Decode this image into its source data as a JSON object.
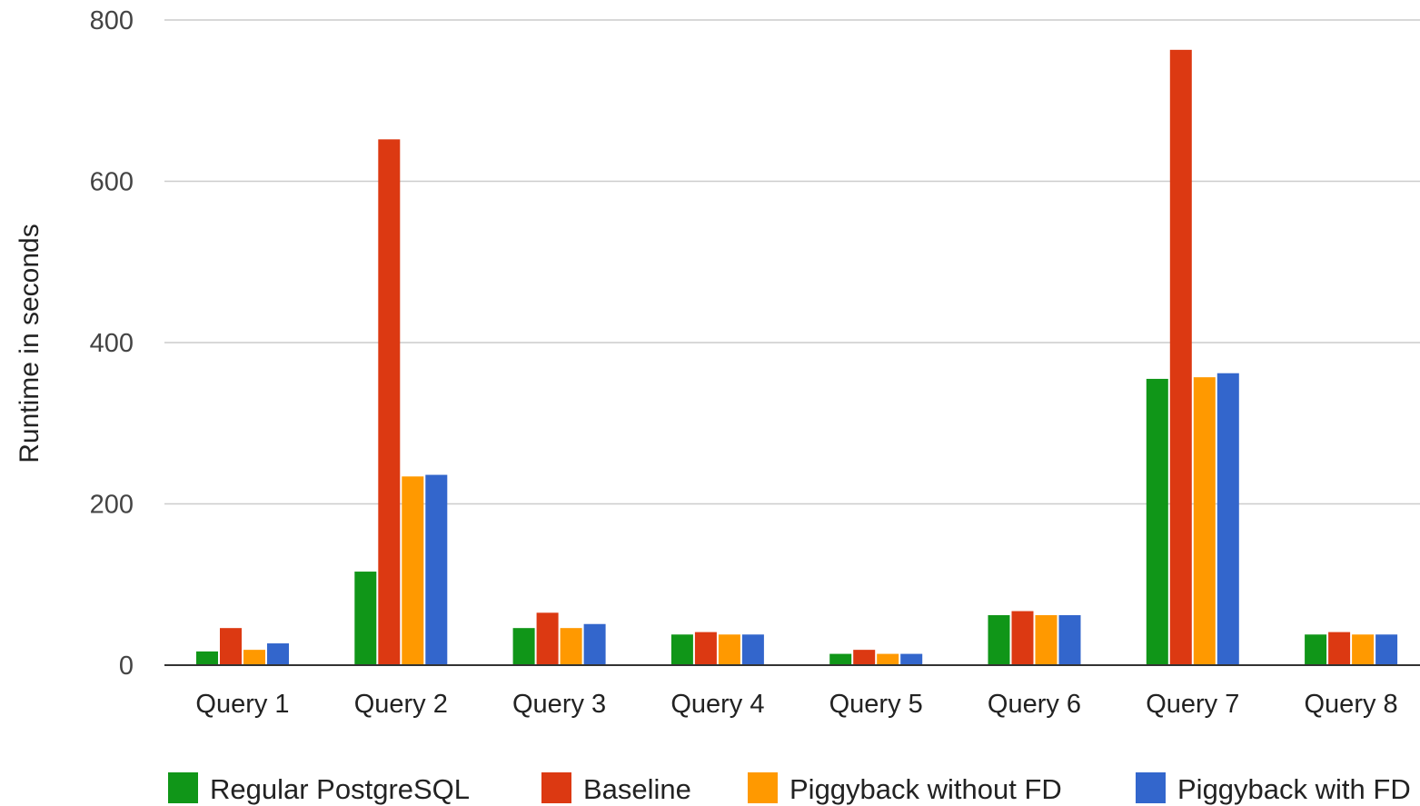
{
  "chart_data": {
    "type": "bar",
    "ylabel": "Runtime in seconds",
    "ylim": [
      0,
      800
    ],
    "yticks": [
      0,
      200,
      400,
      600,
      800
    ],
    "grid": true,
    "legend_position": "bottom",
    "categories": [
      "Query 1",
      "Query 2",
      "Query 3",
      "Query 4",
      "Query 5",
      "Query 6",
      "Query 7",
      "Query 8"
    ],
    "series": [
      {
        "name": "Regular PostgreSQL",
        "color": "#109618",
        "values": [
          17,
          116,
          46,
          38,
          14,
          62,
          355,
          38
        ]
      },
      {
        "name": "Baseline",
        "color": "#dc3912",
        "values": [
          46,
          652,
          65,
          41,
          19,
          67,
          763,
          41
        ]
      },
      {
        "name": "Piggyback without FD",
        "color": "#ff9900",
        "values": [
          19,
          234,
          46,
          38,
          14,
          62,
          357,
          38
        ]
      },
      {
        "name": "Piggyback with FD",
        "color": "#3366cc",
        "values": [
          27,
          236,
          51,
          38,
          14,
          62,
          362,
          38
        ]
      }
    ]
  }
}
